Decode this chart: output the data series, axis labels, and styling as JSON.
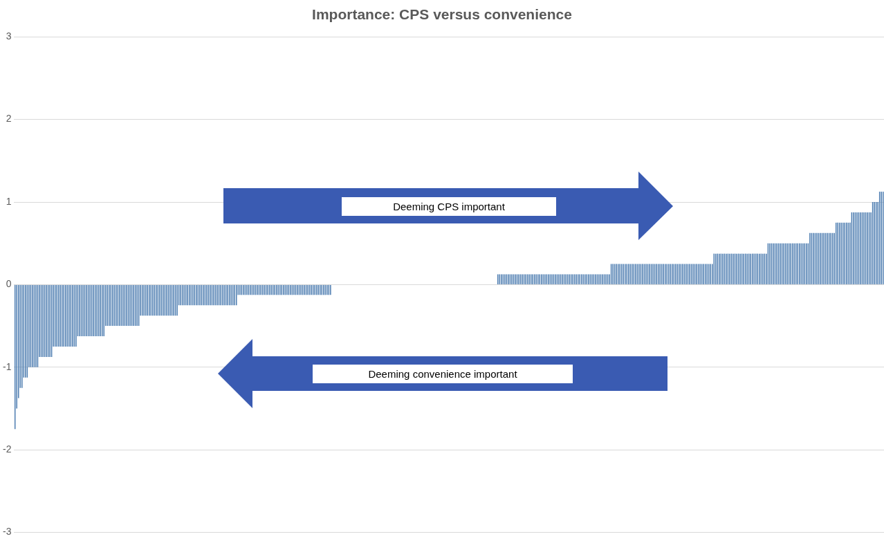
{
  "chart_data": {
    "type": "bar",
    "title": "Importance: CPS versus convenience",
    "categories": [
      null,
      null,
      null,
      null,
      null,
      null,
      null,
      null,
      null,
      null,
      null,
      null,
      null,
      null,
      null,
      null,
      null,
      null,
      null,
      null,
      null,
      null,
      null,
      null,
      null,
      null,
      null,
      null,
      null,
      null,
      null,
      null,
      null,
      null,
      null,
      null,
      null,
      null,
      null,
      null,
      null,
      null,
      null,
      null,
      null,
      null,
      null,
      null,
      null,
      null,
      null,
      null,
      null,
      null,
      null,
      null,
      null,
      null,
      null,
      null,
      null,
      null,
      null,
      null,
      null,
      null,
      null,
      null,
      null,
      null,
      null,
      null,
      null,
      null,
      null,
      null,
      null,
      null,
      null,
      null,
      null,
      null,
      null,
      null,
      null,
      null,
      null,
      null,
      null,
      null,
      null,
      null,
      null,
      null,
      null,
      null,
      null,
      null,
      null,
      null,
      null,
      null,
      null,
      null,
      null,
      null,
      null,
      null,
      null,
      null,
      null,
      null,
      null,
      null,
      null,
      null,
      null,
      null,
      null,
      null,
      null,
      null,
      null,
      null,
      null,
      null,
      null,
      null,
      null,
      null,
      null,
      null,
      null,
      null,
      null,
      null,
      null,
      null,
      null,
      null,
      null,
      null,
      null,
      null,
      null,
      null,
      null,
      null,
      null,
      null,
      null,
      null,
      null,
      null,
      null,
      null,
      null,
      null,
      null,
      null,
      null,
      null,
      null,
      null,
      null,
      null,
      null,
      null,
      null,
      null,
      null,
      null,
      null,
      null,
      null,
      null,
      null,
      null,
      null,
      null,
      null,
      null,
      null,
      null,
      null,
      null,
      null,
      null,
      null,
      null,
      null,
      null,
      null,
      null,
      null,
      null,
      null,
      null,
      null,
      null,
      null,
      null,
      null,
      null,
      null,
      null,
      null,
      null,
      null,
      null,
      null,
      null,
      null,
      null,
      null,
      null,
      null,
      null,
      null,
      null,
      null,
      null,
      null,
      null,
      null,
      null,
      null,
      null,
      null,
      null,
      null,
      null,
      null,
      null,
      null,
      null,
      null,
      null,
      null,
      null,
      null,
      null,
      null,
      null,
      null,
      null,
      null,
      null,
      null,
      null,
      null,
      null,
      null,
      null,
      null,
      null,
      null,
      null,
      null,
      null,
      null,
      null,
      null,
      null,
      null,
      null,
      null,
      null,
      null,
      null,
      null,
      null,
      null,
      null,
      null,
      null,
      null,
      null,
      null,
      null,
      null,
      null,
      null,
      null,
      null,
      null,
      null,
      null,
      null,
      null,
      null,
      null,
      null,
      null,
      null,
      null,
      null,
      null,
      null,
      null,
      null,
      null,
      null,
      null,
      null,
      null,
      null,
      null,
      null,
      null,
      null,
      null,
      null,
      null,
      null,
      null,
      null,
      null,
      null,
      null,
      null,
      null,
      null,
      null,
      null,
      null,
      null,
      null,
      null,
      null,
      null,
      null,
      null,
      null,
      null,
      null,
      null,
      null,
      null,
      null,
      null,
      null,
      null,
      null,
      null,
      null,
      null,
      null,
      null,
      null,
      null,
      null,
      null,
      null,
      null,
      null,
      null,
      null,
      null,
      null,
      null,
      null,
      null,
      null,
      null,
      null,
      null,
      null,
      null,
      null,
      null,
      null,
      null,
      null,
      null,
      null,
      null,
      null,
      null,
      null,
      null,
      null,
      null,
      null,
      null,
      null,
      null,
      null,
      null,
      null,
      null,
      null,
      null,
      null,
      null,
      null,
      null,
      null,
      null,
      null,
      null,
      null,
      null,
      null,
      null,
      null,
      null,
      null,
      null,
      null,
      null,
      null,
      null,
      null,
      null,
      null,
      null,
      null,
      null,
      null,
      null,
      null,
      null,
      null,
      null,
      null,
      null,
      null,
      null,
      null,
      null,
      null,
      null,
      null,
      null,
      null,
      null,
      null,
      null,
      null,
      null,
      null,
      null,
      null,
      null,
      null,
      null,
      null,
      null,
      null,
      null,
      null,
      null,
      null,
      null,
      null,
      null,
      null,
      null,
      null,
      null,
      null,
      null,
      null,
      null,
      null,
      null,
      null,
      null,
      null,
      null,
      null,
      null,
      null,
      null,
      null,
      null,
      null,
      null,
      null,
      null,
      null,
      null,
      null,
      null,
      null,
      null,
      null,
      null,
      null,
      null,
      null,
      null,
      null,
      null,
      null,
      null,
      null,
      null
    ],
    "values": [
      -1.75,
      -1.5,
      -1.375,
      -1.25,
      -1.25,
      -1.125,
      -1.125,
      -1.125,
      -1,
      -1,
      -1,
      -1,
      -1,
      -1,
      -0.875,
      -0.875,
      -0.875,
      -0.875,
      -0.875,
      -0.875,
      -0.875,
      -0.875,
      -0.75,
      -0.75,
      -0.75,
      -0.75,
      -0.75,
      -0.75,
      -0.75,
      -0.75,
      -0.75,
      -0.75,
      -0.75,
      -0.75,
      -0.75,
      -0.75,
      -0.625,
      -0.625,
      -0.625,
      -0.625,
      -0.625,
      -0.625,
      -0.625,
      -0.625,
      -0.625,
      -0.625,
      -0.625,
      -0.625,
      -0.625,
      -0.625,
      -0.625,
      -0.625,
      -0.5,
      -0.5,
      -0.5,
      -0.5,
      -0.5,
      -0.5,
      -0.5,
      -0.5,
      -0.5,
      -0.5,
      -0.5,
      -0.5,
      -0.5,
      -0.5,
      -0.5,
      -0.5,
      -0.5,
      -0.5,
      -0.5,
      -0.5,
      -0.375,
      -0.375,
      -0.375,
      -0.375,
      -0.375,
      -0.375,
      -0.375,
      -0.375,
      -0.375,
      -0.375,
      -0.375,
      -0.375,
      -0.375,
      -0.375,
      -0.375,
      -0.375,
      -0.375,
      -0.375,
      -0.375,
      -0.375,
      -0.375,
      -0.375,
      -0.25,
      -0.25,
      -0.25,
      -0.25,
      -0.25,
      -0.25,
      -0.25,
      -0.25,
      -0.25,
      -0.25,
      -0.25,
      -0.25,
      -0.25,
      -0.25,
      -0.25,
      -0.25,
      -0.25,
      -0.25,
      -0.25,
      -0.25,
      -0.25,
      -0.25,
      -0.25,
      -0.25,
      -0.25,
      -0.25,
      -0.25,
      -0.25,
      -0.25,
      -0.25,
      -0.25,
      -0.25,
      -0.25,
      -0.25,
      -0.125,
      -0.125,
      -0.125,
      -0.125,
      -0.125,
      -0.125,
      -0.125,
      -0.125,
      -0.125,
      -0.125,
      -0.125,
      -0.125,
      -0.125,
      -0.125,
      -0.125,
      -0.125,
      -0.125,
      -0.125,
      -0.125,
      -0.125,
      -0.125,
      -0.125,
      -0.125,
      -0.125,
      -0.125,
      -0.125,
      -0.125,
      -0.125,
      -0.125,
      -0.125,
      -0.125,
      -0.125,
      -0.125,
      -0.125,
      -0.125,
      -0.125,
      -0.125,
      -0.125,
      -0.125,
      -0.125,
      -0.125,
      -0.125,
      -0.125,
      -0.125,
      -0.125,
      -0.125,
      -0.125,
      -0.125,
      -0.125,
      -0.125,
      -0.125,
      -0.125,
      -0.125,
      -0.125,
      0,
      0,
      0,
      0,
      0,
      0,
      0,
      0,
      0,
      0,
      0,
      0,
      0,
      0,
      0,
      0,
      0,
      0,
      0,
      0,
      0,
      0,
      0,
      0,
      0,
      0,
      0,
      0,
      0,
      0,
      0,
      0,
      0,
      0,
      0,
      0,
      0,
      0,
      0,
      0,
      0,
      0,
      0,
      0,
      0,
      0,
      0,
      0,
      0,
      0,
      0,
      0,
      0,
      0,
      0,
      0,
      0,
      0,
      0,
      0,
      0,
      0,
      0,
      0,
      0,
      0,
      0,
      0,
      0,
      0,
      0,
      0,
      0,
      0,
      0,
      0,
      0,
      0,
      0,
      0,
      0,
      0,
      0,
      0,
      0,
      0,
      0,
      0,
      0,
      0,
      0,
      0,
      0,
      0,
      0,
      0.125,
      0.125,
      0.125,
      0.125,
      0.125,
      0.125,
      0.125,
      0.125,
      0.125,
      0.125,
      0.125,
      0.125,
      0.125,
      0.125,
      0.125,
      0.125,
      0.125,
      0.125,
      0.125,
      0.125,
      0.125,
      0.125,
      0.125,
      0.125,
      0.125,
      0.125,
      0.125,
      0.125,
      0.125,
      0.125,
      0.125,
      0.125,
      0.125,
      0.125,
      0.125,
      0.125,
      0.125,
      0.125,
      0.125,
      0.125,
      0.125,
      0.125,
      0.125,
      0.125,
      0.125,
      0.125,
      0.125,
      0.125,
      0.125,
      0.125,
      0.125,
      0.125,
      0.125,
      0.125,
      0.125,
      0.125,
      0.125,
      0.125,
      0.125,
      0.125,
      0.125,
      0.125,
      0.125,
      0.125,
      0.125,
      0.25,
      0.25,
      0.25,
      0.25,
      0.25,
      0.25,
      0.25,
      0.25,
      0.25,
      0.25,
      0.25,
      0.25,
      0.25,
      0.25,
      0.25,
      0.25,
      0.25,
      0.25,
      0.25,
      0.25,
      0.25,
      0.25,
      0.25,
      0.25,
      0.25,
      0.25,
      0.25,
      0.25,
      0.25,
      0.25,
      0.25,
      0.25,
      0.25,
      0.25,
      0.25,
      0.25,
      0.25,
      0.25,
      0.25,
      0.25,
      0.25,
      0.25,
      0.25,
      0.25,
      0.25,
      0.25,
      0.25,
      0.25,
      0.25,
      0.25,
      0.25,
      0.25,
      0.25,
      0.25,
      0.25,
      0.25,
      0.25,
      0.25,
      0.25,
      0.375,
      0.375,
      0.375,
      0.375,
      0.375,
      0.375,
      0.375,
      0.375,
      0.375,
      0.375,
      0.375,
      0.375,
      0.375,
      0.375,
      0.375,
      0.375,
      0.375,
      0.375,
      0.375,
      0.375,
      0.375,
      0.375,
      0.375,
      0.375,
      0.375,
      0.375,
      0.375,
      0.375,
      0.375,
      0.375,
      0.375,
      0.5,
      0.5,
      0.5,
      0.5,
      0.5,
      0.5,
      0.5,
      0.5,
      0.5,
      0.5,
      0.5,
      0.5,
      0.5,
      0.5,
      0.5,
      0.5,
      0.5,
      0.5,
      0.5,
      0.5,
      0.5,
      0.5,
      0.5,
      0.5,
      0.625,
      0.625,
      0.625,
      0.625,
      0.625,
      0.625,
      0.625,
      0.625,
      0.625,
      0.625,
      0.625,
      0.625,
      0.625,
      0.625,
      0.625,
      0.75,
      0.75,
      0.75,
      0.75,
      0.75,
      0.75,
      0.75,
      0.75,
      0.75,
      0.875,
      0.875,
      0.875,
      0.875,
      0.875,
      0.875,
      0.875,
      0.875,
      0.875,
      0.875,
      0.875,
      0.875,
      1,
      1,
      1,
      1,
      1.125,
      1.125,
      1.125
    ],
    "color": "#4f7eb1",
    "ylim": [
      -3,
      3
    ],
    "yticks": [
      -3,
      -2,
      -1,
      0,
      1,
      2,
      3
    ],
    "grid": "y",
    "tick_labels": "y",
    "legend": false,
    "annotations": [
      "Deeming CPS important",
      "Deeming convenience important"
    ]
  }
}
